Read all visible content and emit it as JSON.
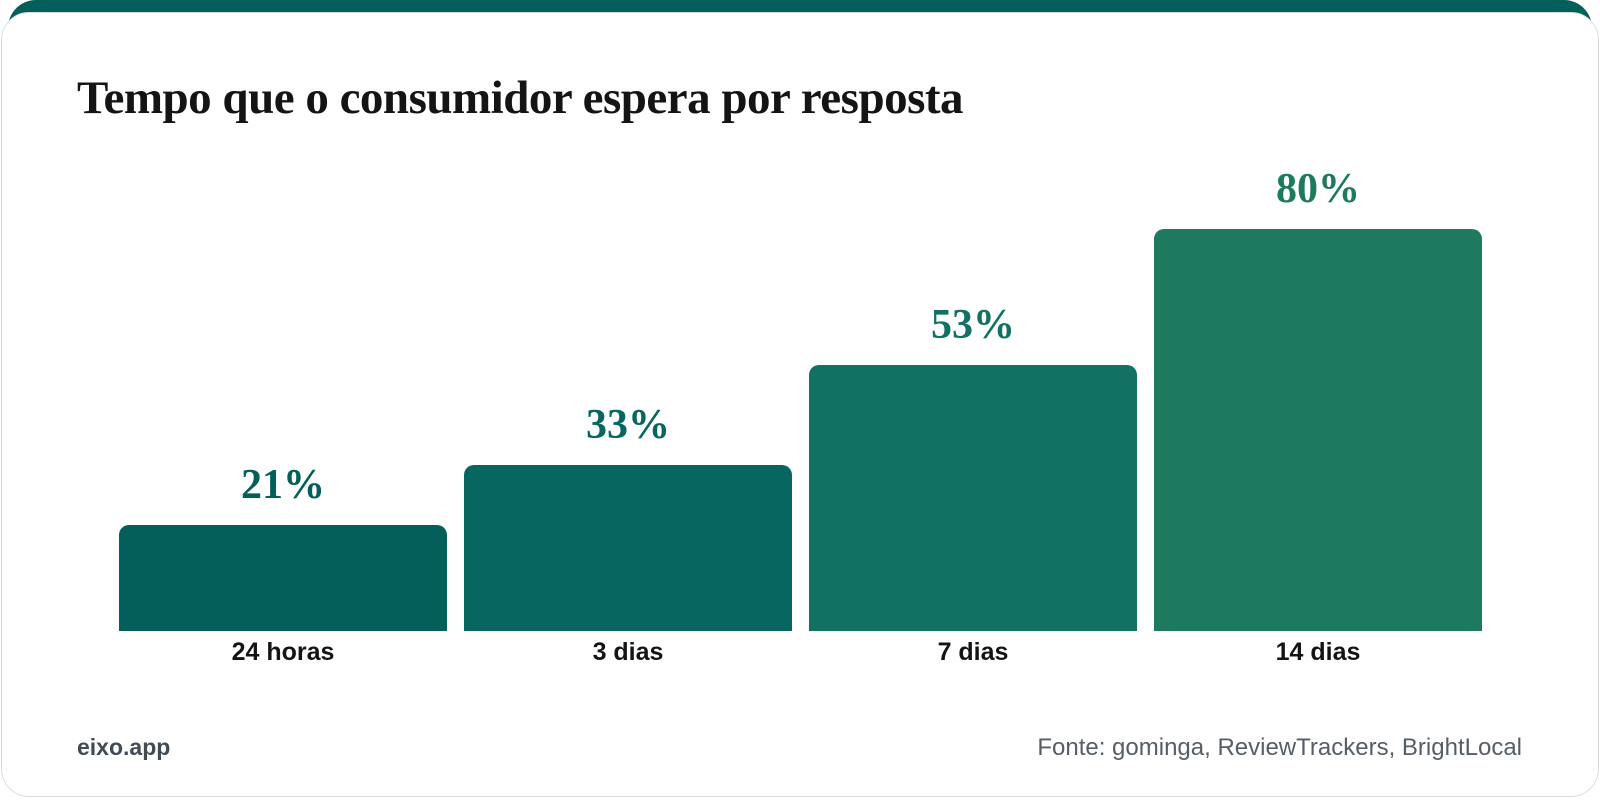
{
  "page": {
    "title": "Tempo que o consumidor espera por resposta",
    "footer": {
      "brand": "eixo.app",
      "source": "Fonte: gominga, ReviewTrackers, BrightLocal"
    },
    "colors": {
      "accent_bar": "#045f5a",
      "card_border": "#d9dde2",
      "title_text": "#141414",
      "brand_text": "#414b55",
      "source_text": "#555e66"
    }
  },
  "chart_data": {
    "type": "bar",
    "title": "Tempo que o consumidor espera por resposta",
    "categories": [
      "24 horas",
      "3 dias",
      "7 dias",
      "14 dias"
    ],
    "values": [
      21,
      33,
      53,
      80
    ],
    "value_labels": [
      "21%",
      "33%",
      "53%",
      "80%"
    ],
    "bar_colors": [
      "#045f5a",
      "#07665f",
      "#117162",
      "#1d7a5e"
    ],
    "xlabel": "",
    "ylabel": "",
    "ylim": [
      0,
      80
    ],
    "grid": false,
    "legend": false
  }
}
